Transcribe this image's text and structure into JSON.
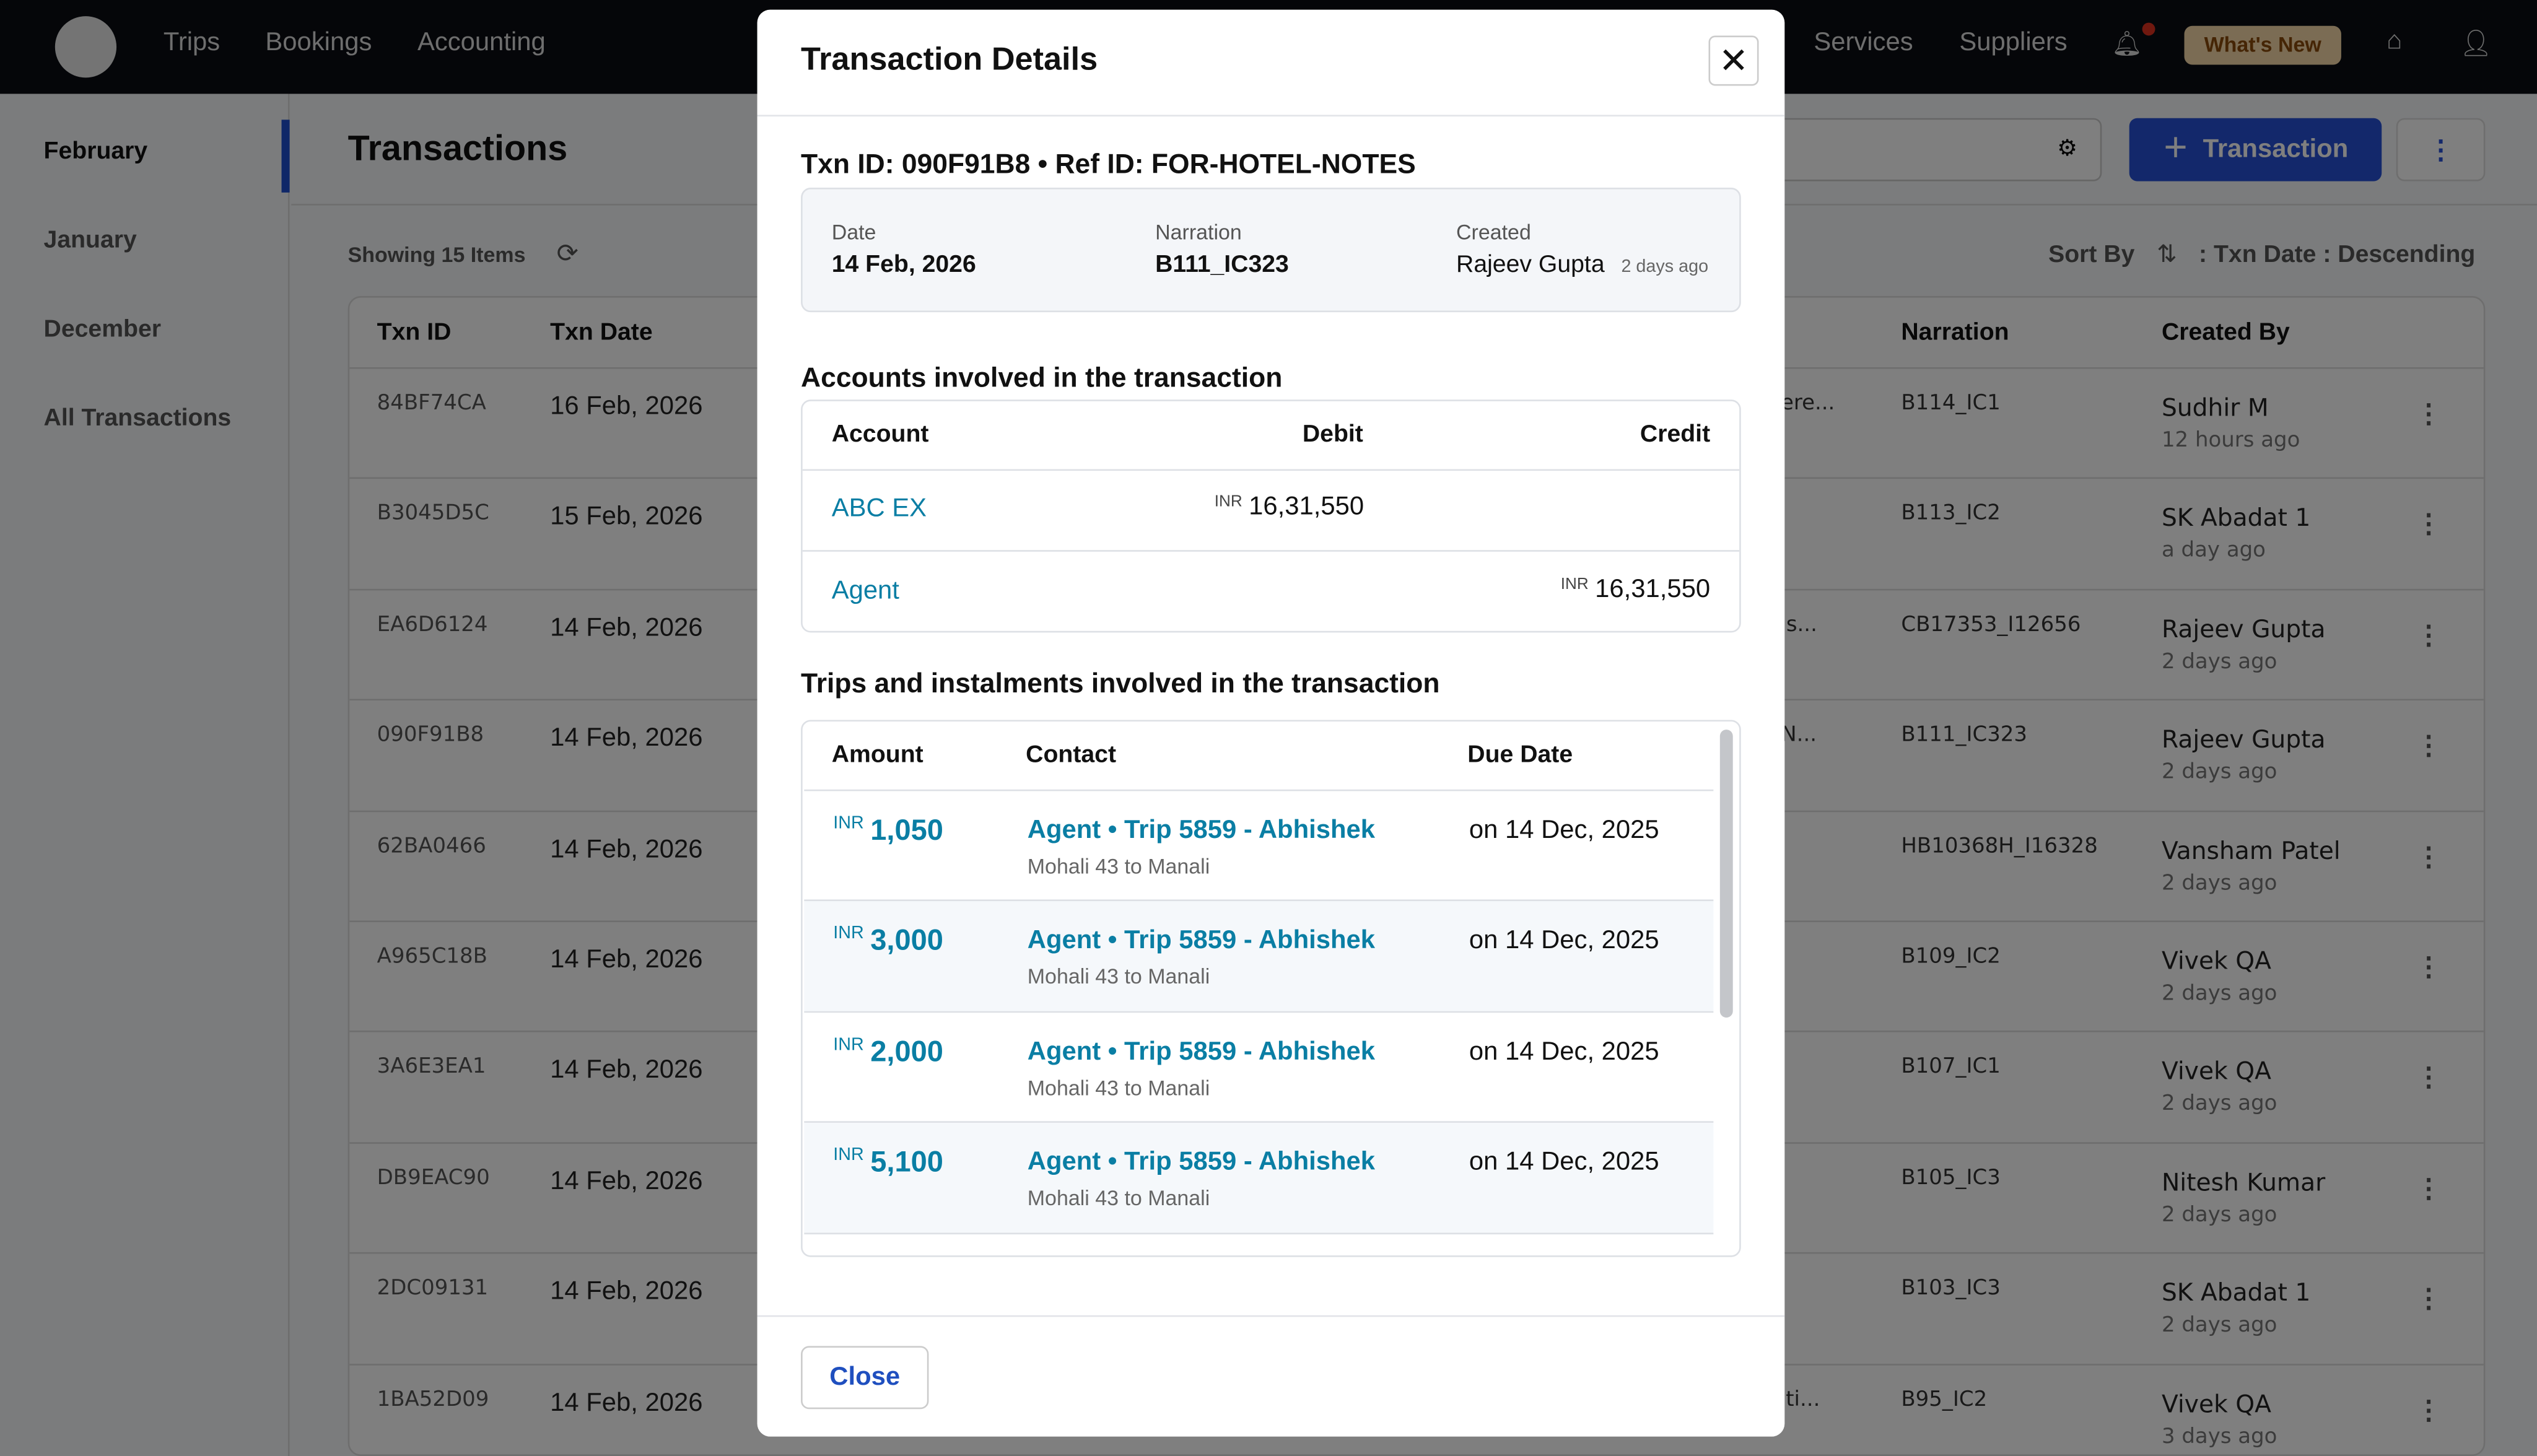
{
  "topbar": {
    "nav": [
      "Trips",
      "Bookings",
      "Accounting"
    ],
    "nav_right": [
      "Services",
      "Suppliers"
    ],
    "whats_new": "What's New",
    "colors": {
      "accent": "#2651d6",
      "badge": "#f6d9a9"
    }
  },
  "sidebar": {
    "items": [
      "February",
      "January",
      "December",
      "All Transactions"
    ],
    "active": "February"
  },
  "main": {
    "title": "Transactions",
    "showing": "Showing 15 Items",
    "sort_by": "Sort By",
    "sort_value": ": Txn Date : Descending",
    "add_button": "Transaction",
    "columns": {
      "id": "Txn ID",
      "date": "Txn Date",
      "narration": "Narration",
      "created_by": "Created By"
    },
    "rows": [
      {
        "id": "84BF74CA",
        "date": "16 Feb, 2026",
        "frag": "fere...",
        "narration": "B114_IC1",
        "by": "Sudhir M",
        "ago": "12 hours ago"
      },
      {
        "id": "B3045D5C",
        "date": "15 Feb, 2026",
        "frag": "",
        "narration": "B113_IC2",
        "by": "SK Abadat 1",
        "ago": "a day ago"
      },
      {
        "id": "EA6D6124",
        "date": "14 Feb, 2026",
        "frag": "as...",
        "narration": "CB17353_I12656",
        "by": "Rajeev Gupta",
        "ago": "2 days ago"
      },
      {
        "id": "090F91B8",
        "date": "14 Feb, 2026",
        "frag": "-N...",
        "narration": "B111_IC323",
        "by": "Rajeev Gupta",
        "ago": "2 days ago"
      },
      {
        "id": "62BA0466",
        "date": "14 Feb, 2026",
        "frag": "",
        "narration": "HB10368H_I16328",
        "by": "Vansham Patel",
        "ago": "2 days ago"
      },
      {
        "id": "A965C18B",
        "date": "14 Feb, 2026",
        "frag": "",
        "narration": "B109_IC2",
        "by": "Vivek QA",
        "ago": "2 days ago"
      },
      {
        "id": "3A6E3EA1",
        "date": "14 Feb, 2026",
        "frag": "",
        "narration": "B107_IC1",
        "by": "Vivek QA",
        "ago": "2 days ago"
      },
      {
        "id": "DB9EAC90",
        "date": "14 Feb, 2026",
        "frag": "",
        "narration": "B105_IC3",
        "by": "Nitesh Kumar",
        "ago": "2 days ago"
      },
      {
        "id": "2DC09131",
        "date": "14 Feb, 2026",
        "frag": "",
        "narration": "B103_IC3",
        "by": "SK Abadat 1",
        "ago": "2 days ago"
      },
      {
        "id": "1BA52D09",
        "date": "14 Feb, 2026",
        "frag": "i ti...",
        "narration": "B95_IC2",
        "by": "Vivek QA",
        "ago": "3 days ago"
      }
    ]
  },
  "modal": {
    "title": "Transaction Details",
    "txn_line": "Txn ID: 090F91B8 • Ref ID: FOR-HOTEL-NOTES",
    "info": {
      "date_label": "Date",
      "date": "14 Feb, 2026",
      "narration_label": "Narration",
      "narration": "B111_IC323",
      "created_label": "Created",
      "created_by": "Rajeev Gupta",
      "created_ago": "2 days ago"
    },
    "accounts_title": "Accounts involved in the transaction",
    "accounts_cols": [
      "Account",
      "Debit",
      "Credit"
    ],
    "accounts": [
      {
        "name": "ABC EX",
        "currency": "INR",
        "debit": "16,31,550",
        "credit": ""
      },
      {
        "name": "Agent",
        "currency": "INR",
        "debit": "",
        "credit": "16,31,550"
      }
    ],
    "trips_title": "Trips and instalments involved in the transaction",
    "trips_cols": [
      "Amount",
      "Contact",
      "Due Date"
    ],
    "trips": [
      {
        "currency": "INR",
        "amount": "1,050",
        "contact": "Agent • Trip 5859 - Abhishek",
        "route": "Mohali 43 to Manali",
        "due": "on 14 Dec, 2025"
      },
      {
        "currency": "INR",
        "amount": "3,000",
        "contact": "Agent • Trip 5859 - Abhishek",
        "route": "Mohali 43 to Manali",
        "due": "on 14 Dec, 2025"
      },
      {
        "currency": "INR",
        "amount": "2,000",
        "contact": "Agent • Trip 5859 - Abhishek",
        "route": "Mohali 43 to Manali",
        "due": "on 14 Dec, 2025"
      },
      {
        "currency": "INR",
        "amount": "5,100",
        "contact": "Agent • Trip 5859 - Abhishek",
        "route": "Mohali 43 to Manali",
        "due": "on 14 Dec, 2025"
      }
    ],
    "close_label": "Close"
  }
}
